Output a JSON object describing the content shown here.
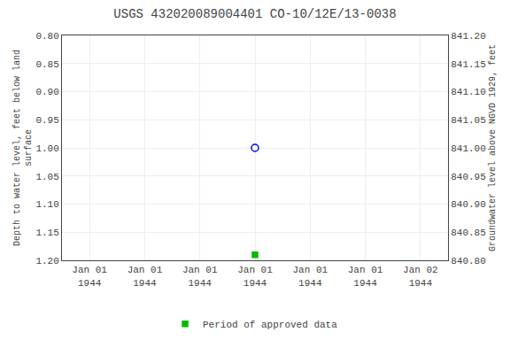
{
  "chart_data": {
    "type": "scatter",
    "title": "USGS 432020089004401 CO-10/12E/13-0038",
    "ylabel": "Depth to water level, feet below land\nsurface",
    "y2label": "Groundwater level above NGVD 1929, feet",
    "categories": [
      "Jan 01\n1944",
      "Jan 01\n1944",
      "Jan 01\n1944",
      "Jan 01\n1944",
      "Jan 01\n1944",
      "Jan 01\n1944",
      "Jan 02\n1944"
    ],
    "series": [
      {
        "color": "blue",
        "marker": "open circle",
        "values": [
          null,
          null,
          null,
          1.0,
          null,
          null,
          null
        ]
      },
      {
        "name": "Period of approved data",
        "color": "#00bb00",
        "marker": "square",
        "values": [
          null,
          null,
          null,
          1.19,
          null,
          null,
          null
        ]
      }
    ],
    "ylim": [
      1.2,
      0.8
    ],
    "yticks": [
      {
        "value": 0.8,
        "label": "0.80"
      },
      0.85,
      {
        "value": 0.9,
        "label": "0.90"
      },
      0.95,
      {
        "value": 1.0,
        "label": "1.00"
      },
      1.05,
      {
        "value": 1.1,
        "label": "1.10"
      },
      1.15,
      {
        "value": 1.2,
        "label": "1.20"
      }
    ],
    "y2lim": [
      840.8,
      841.2
    ],
    "y2ticks": [
      {
        "value": 841.2,
        "label": "841.20"
      },
      841.15,
      {
        "value": 841.1,
        "label": "841.10"
      },
      841.05,
      {
        "value": 841.0,
        "label": "841.00"
      },
      840.95,
      {
        "value": 840.9,
        "label": "840.90"
      },
      840.85,
      {
        "value": 840.8,
        "label": "840.80"
      }
    ],
    "grid": true,
    "legend": "bottom"
  }
}
